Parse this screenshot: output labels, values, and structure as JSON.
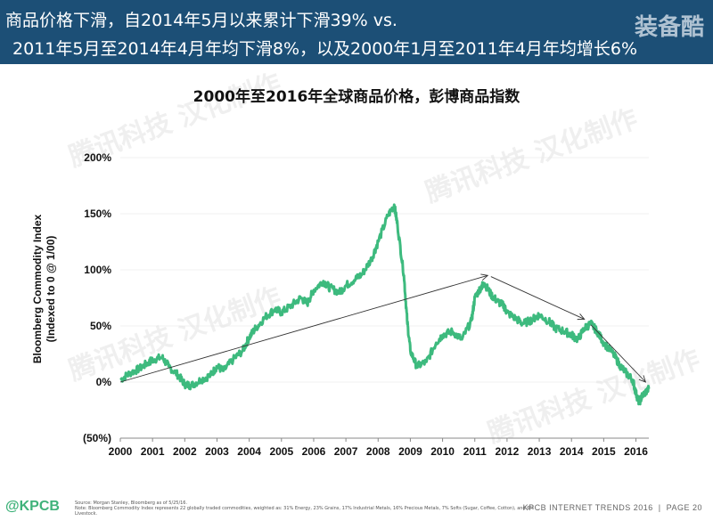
{
  "header": {
    "line1": "商品价格下滑，自2014年5月以来累计下滑39% vs.",
    "line2": "2011年5月至2014年4月年均下滑8%，以及2000年1月至2011年4月年均增长6%",
    "logo": "装备酷"
  },
  "watermark": "腾讯科技 汉化制作",
  "footer": {
    "brand": "@KPCB",
    "source_line1": "Source: Morgan Stanley, Bloomberg as of 5/25/16.",
    "source_line2": "Note: Bloomberg Commodity Index represents 22 globally traded commodities, weighted as: 31% Energy, 23% Grains, 17% Industrial Metals, 16% Precious Metals, 7% Softs (Sugar, Coffee, Cotton), and 6% Livestock.",
    "report": "KPCB INTERNET TRENDS 2016",
    "page": "PAGE 20"
  },
  "colors": {
    "series": "#3dba7e",
    "header_bg": "#1c4f76",
    "arrow": "#333333"
  },
  "chart_data": {
    "type": "line",
    "title": "2000年至2016年全球商品价格，彭博商品指数",
    "ylabel_line1": "Bloomberg Commodity Index",
    "ylabel_line2": "(Indexed to 0 @ 1/00)",
    "ylim": [
      -50,
      200
    ],
    "yticks": [
      -50,
      0,
      50,
      100,
      150,
      200
    ],
    "ytick_labels": [
      "(50%)",
      "0%",
      "50%",
      "100%",
      "150%",
      "200%"
    ],
    "xlim": [
      2000,
      2016.4
    ],
    "xticks": [
      2000,
      2001,
      2002,
      2003,
      2004,
      2005,
      2006,
      2007,
      2008,
      2009,
      2010,
      2011,
      2012,
      2013,
      2014,
      2015,
      2016
    ],
    "xtick_labels": [
      "2000",
      "2001",
      "2002",
      "2003",
      "2004",
      "2005",
      "2006",
      "2007",
      "2008",
      "2009",
      "2010",
      "2011",
      "2012",
      "2013",
      "2014",
      "2015",
      "2016"
    ],
    "series": [
      {
        "x": [
          2000.0,
          2000.3,
          2000.6,
          2000.9,
          2001.0,
          2001.3,
          2001.5,
          2001.8,
          2002.0,
          2002.2,
          2002.5,
          2002.8,
          2003.0,
          2003.2,
          2003.5,
          2003.8,
          2004.0,
          2004.2,
          2004.5,
          2004.8,
          2005.0,
          2005.3,
          2005.6,
          2005.8,
          2006.0,
          2006.3,
          2006.5,
          2006.8,
          2007.0,
          2007.3,
          2007.5,
          2007.8,
          2008.0,
          2008.3,
          2008.5,
          2008.6,
          2008.8,
          2008.9,
          2009.0,
          2009.2,
          2009.5,
          2009.8,
          2010.0,
          2010.3,
          2010.6,
          2010.9,
          2011.0,
          2011.2,
          2011.3,
          2011.5,
          2011.7,
          2011.9,
          2012.0,
          2012.3,
          2012.5,
          2012.8,
          2013.0,
          2013.3,
          2013.5,
          2013.8,
          2014.0,
          2014.2,
          2014.4,
          2014.6,
          2014.8,
          2015.0,
          2015.3,
          2015.5,
          2015.7,
          2015.9,
          2016.0,
          2016.1,
          2016.2,
          2016.4
        ],
        "values": [
          2,
          8,
          12,
          18,
          20,
          22,
          14,
          6,
          -2,
          -3,
          2,
          6,
          14,
          10,
          20,
          28,
          40,
          48,
          58,
          65,
          62,
          68,
          75,
          70,
          82,
          90,
          84,
          80,
          86,
          92,
          96,
          110,
          125,
          148,
          158,
          140,
          95,
          55,
          28,
          14,
          18,
          35,
          42,
          45,
          38,
          55,
          75,
          85,
          88,
          78,
          72,
          68,
          62,
          56,
          52,
          56,
          60,
          54,
          48,
          45,
          42,
          38,
          48,
          52,
          45,
          35,
          25,
          15,
          8,
          2,
          -10,
          -18,
          -12,
          -6
        ]
      }
    ],
    "arrows": [
      {
        "from": [
          2000.0,
          0
        ],
        "to": [
          2011.4,
          95
        ]
      },
      {
        "from": [
          2011.5,
          94
        ],
        "to": [
          2014.4,
          56
        ]
      },
      {
        "from": [
          2014.6,
          51
        ],
        "to": [
          2016.3,
          0
        ]
      }
    ]
  }
}
